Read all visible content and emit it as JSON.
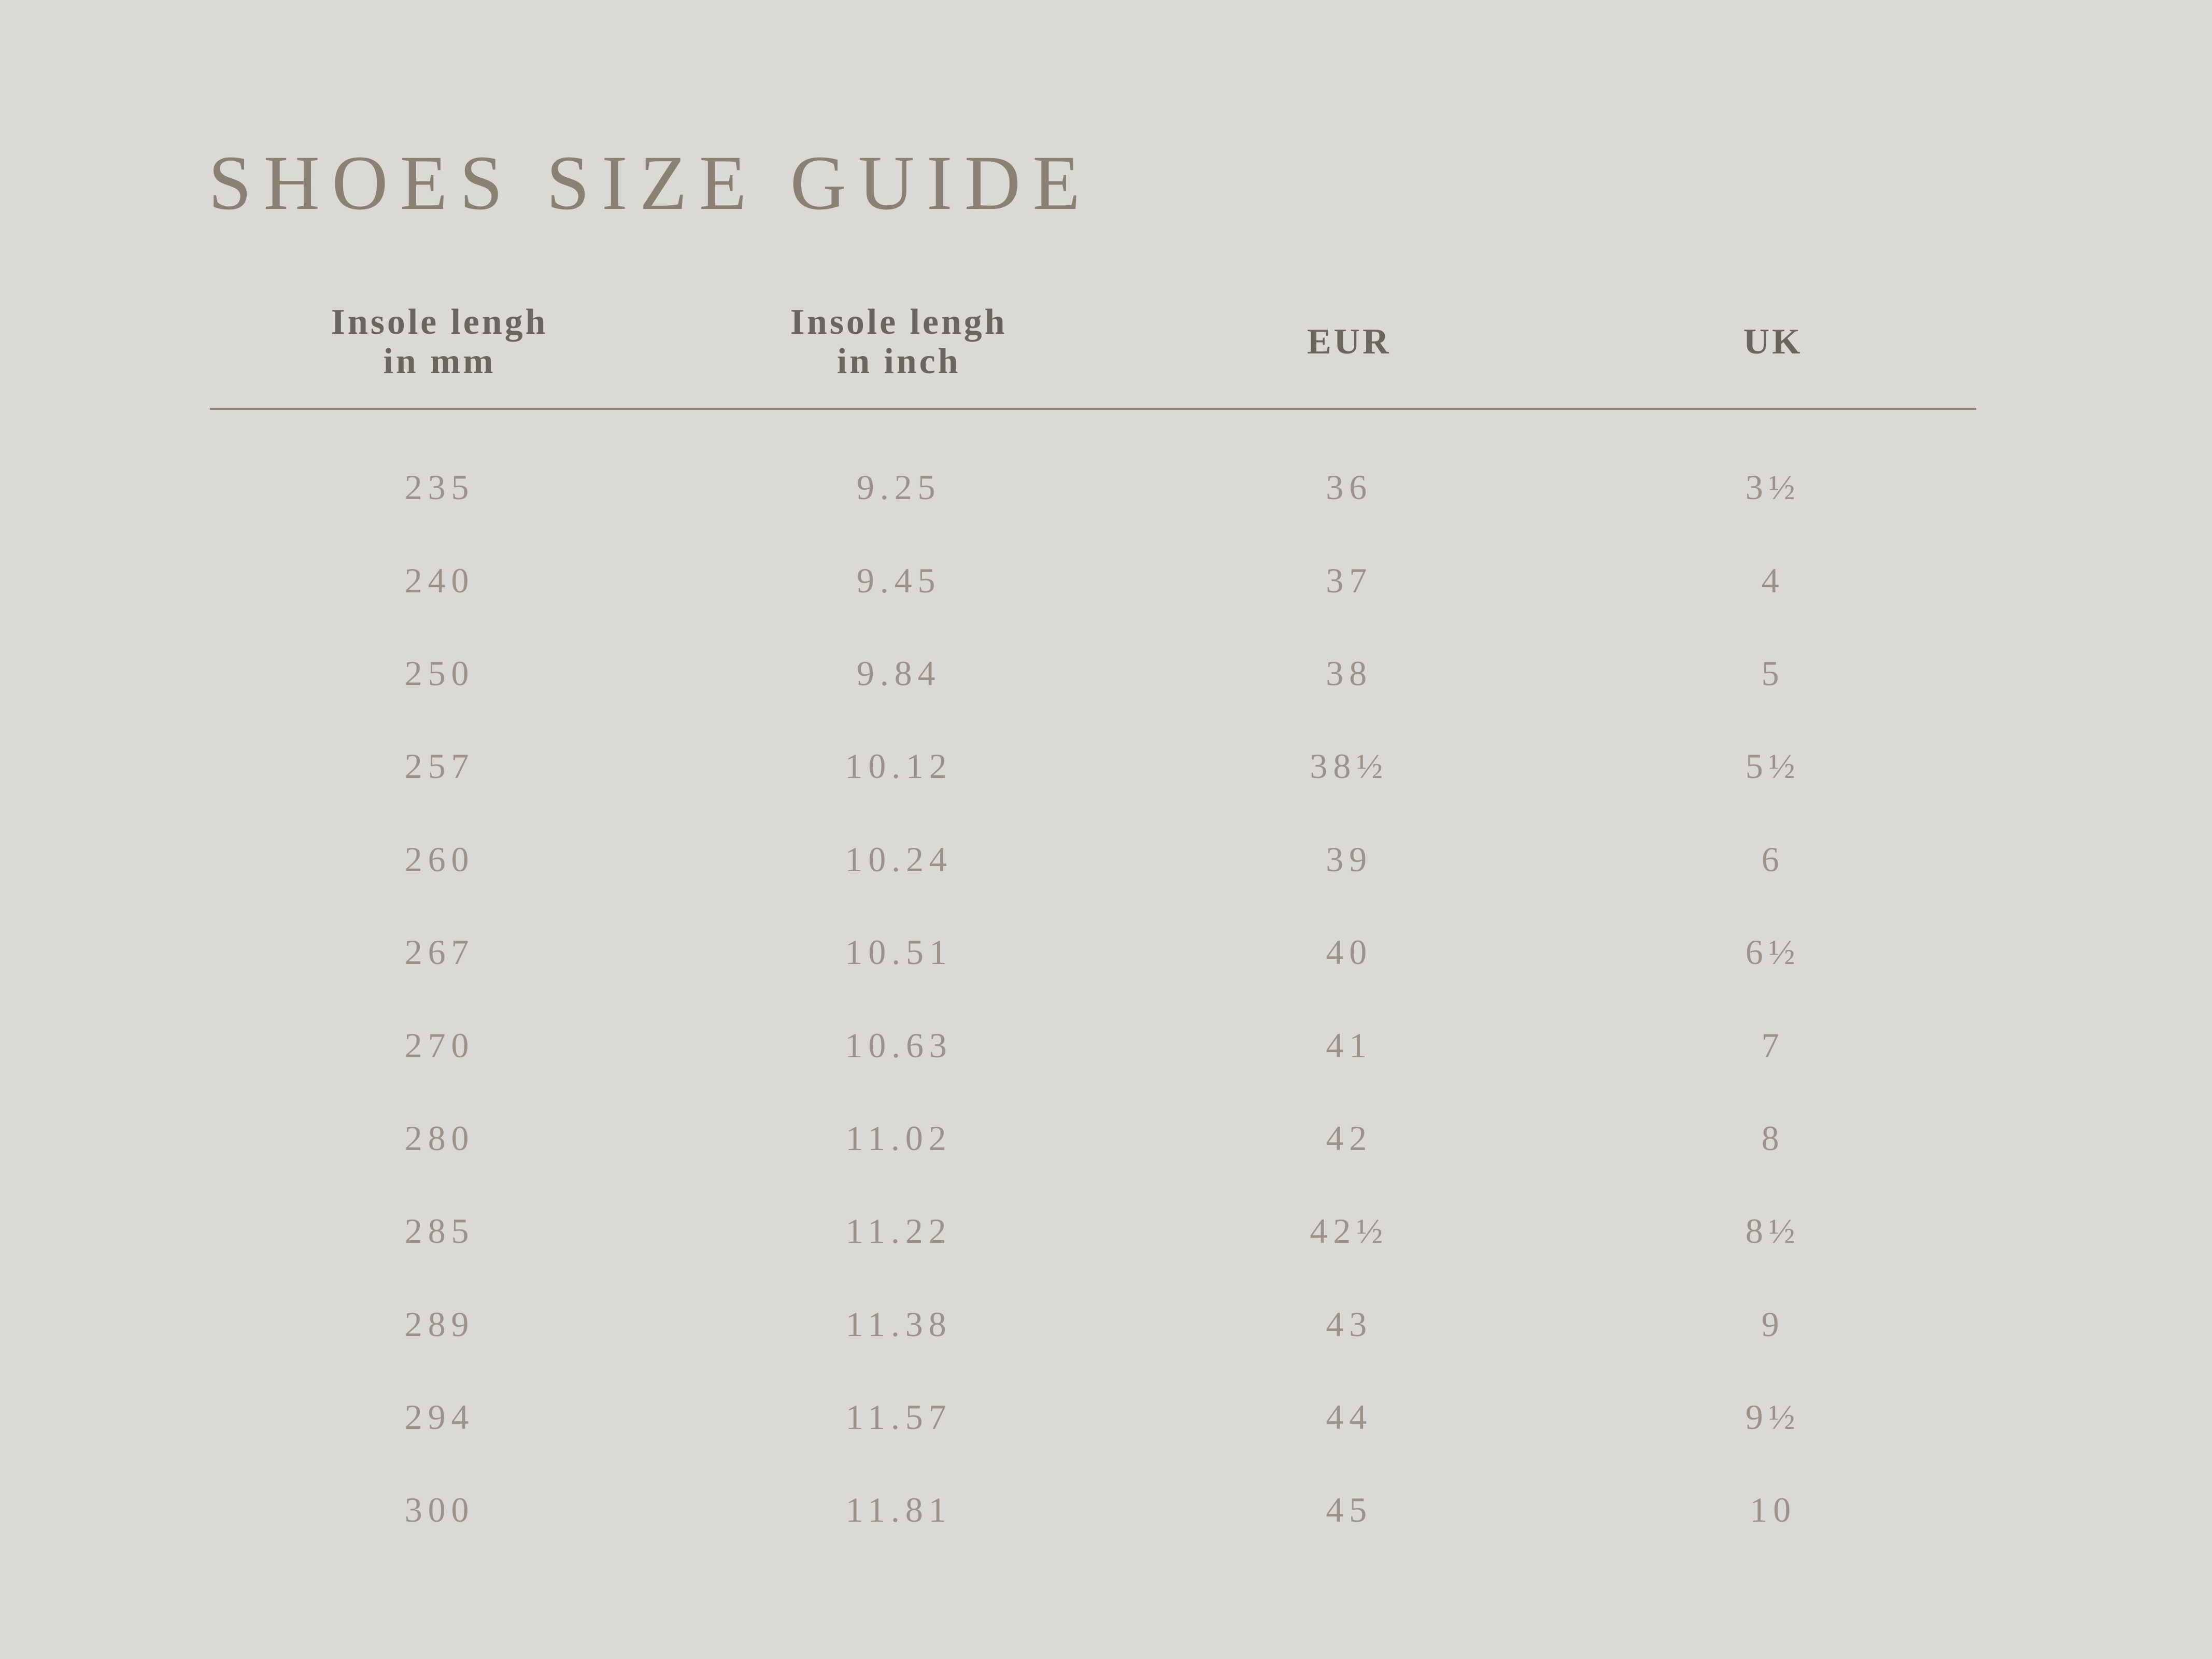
{
  "title": "SHOES SIZE GUIDE",
  "colors": {
    "background": "#dbd9d6",
    "title": "#8a8074",
    "header": "#6c655e",
    "rule": "#8e867c",
    "data": "#9c9289"
  },
  "table": {
    "headers": [
      {
        "line1": "Insole lengh",
        "line2": "in mm"
      },
      {
        "line1": "Insole lengh",
        "line2": "in inch"
      },
      {
        "line1": "EUR",
        "line2": ""
      },
      {
        "line1": "UK",
        "line2": ""
      }
    ],
    "rows": [
      {
        "mm": "235",
        "inch": "9.25",
        "eur": "36",
        "uk": "3½"
      },
      {
        "mm": "240",
        "inch": "9.45",
        "eur": "37",
        "uk": "4"
      },
      {
        "mm": "250",
        "inch": "9.84",
        "eur": "38",
        "uk": "5"
      },
      {
        "mm": "257",
        "inch": "10.12",
        "eur": "38½",
        "uk": "5½"
      },
      {
        "mm": "260",
        "inch": "10.24",
        "eur": "39",
        "uk": "6"
      },
      {
        "mm": "267",
        "inch": "10.51",
        "eur": "40",
        "uk": "6½"
      },
      {
        "mm": "270",
        "inch": "10.63",
        "eur": "41",
        "uk": "7"
      },
      {
        "mm": "280",
        "inch": "11.02",
        "eur": "42",
        "uk": "8"
      },
      {
        "mm": "285",
        "inch": "11.22",
        "eur": "42½",
        "uk": "8½"
      },
      {
        "mm": "289",
        "inch": "11.38",
        "eur": "43",
        "uk": "9"
      },
      {
        "mm": "294",
        "inch": "11.57",
        "eur": "44",
        "uk": "9½"
      },
      {
        "mm": "300",
        "inch": "11.81",
        "eur": "45",
        "uk": "10"
      }
    ]
  }
}
